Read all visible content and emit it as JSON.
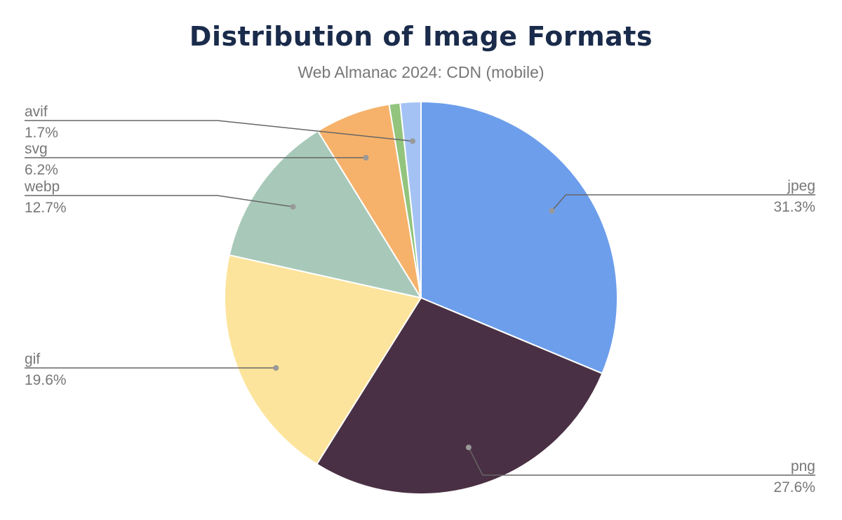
{
  "chart_data": {
    "type": "pie",
    "title": "Distribution of Image Formats",
    "subtitle": "Web Almanac 2024: CDN (mobile)",
    "slices": [
      {
        "label": "jpeg",
        "value": 31.3,
        "display": "31.3%",
        "color": "#6d9eeb"
      },
      {
        "label": "png",
        "value": 27.6,
        "display": "27.6%",
        "color": "#4a3044"
      },
      {
        "label": "gif",
        "value": 19.6,
        "display": "19.6%",
        "color": "#fde49c"
      },
      {
        "label": "webp",
        "value": 12.7,
        "display": "12.7%",
        "color": "#a8c9ba"
      },
      {
        "label": "svg",
        "value": 6.2,
        "display": "6.2%",
        "color": "#f6b26b"
      },
      {
        "label": "",
        "value": 0.9,
        "display": "",
        "color": "#93c47d"
      },
      {
        "label": "avif",
        "value": 1.7,
        "display": "1.7%",
        "color": "#a4c2f4"
      }
    ],
    "legend": "leader-line labels"
  }
}
